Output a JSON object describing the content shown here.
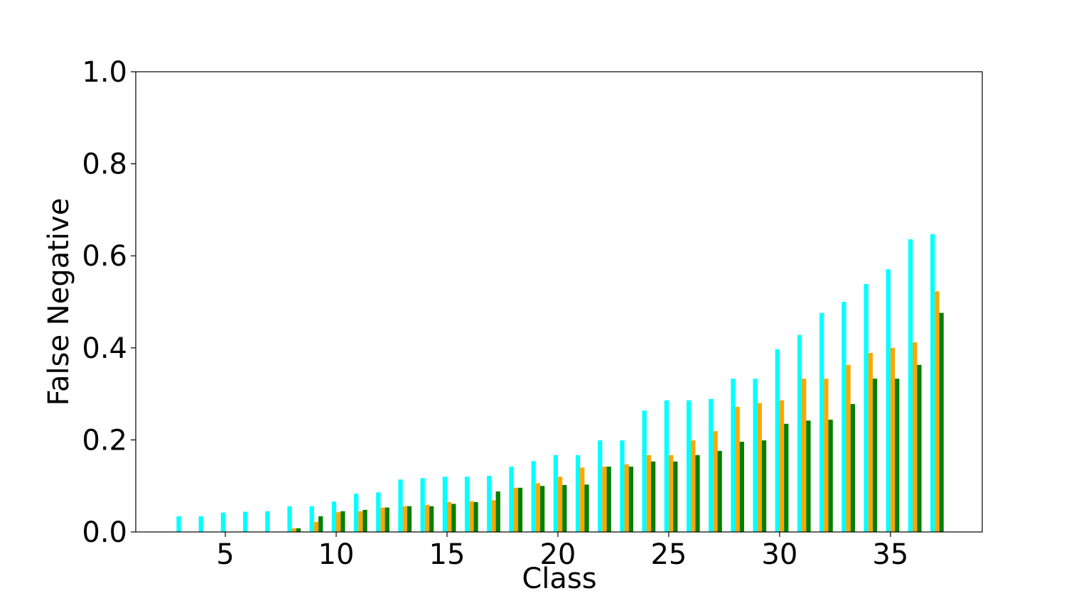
{
  "chart_data": {
    "type": "bar",
    "xlabel": "Class",
    "ylabel": "False Negative",
    "x": [
      3,
      4,
      5,
      6,
      7,
      8,
      9,
      10,
      11,
      12,
      13,
      14,
      15,
      16,
      17,
      18,
      19,
      20,
      21,
      22,
      23,
      24,
      25,
      26,
      27,
      28,
      29,
      30,
      31,
      32,
      33,
      34,
      35,
      36,
      37
    ],
    "series": [
      {
        "color": "#00ffff",
        "values": [
          0.034,
          0.034,
          0.042,
          0.044,
          0.045,
          0.056,
          0.056,
          0.066,
          0.083,
          0.086,
          0.114,
          0.117,
          0.12,
          0.12,
          0.122,
          0.142,
          0.154,
          0.167,
          0.167,
          0.199,
          0.199,
          0.264,
          0.286,
          0.286,
          0.289,
          0.333,
          0.333,
          0.397,
          0.428,
          0.476,
          0.5,
          0.539,
          0.571,
          0.636,
          0.647
        ]
      },
      {
        "color": "#ffa500",
        "values": [
          0,
          0,
          0,
          0,
          0,
          0.008,
          0.022,
          0.043,
          0.045,
          0.053,
          0.056,
          0.059,
          0.065,
          0.067,
          0.069,
          0.096,
          0.106,
          0.12,
          0.14,
          0.142,
          0.147,
          0.167,
          0.167,
          0.199,
          0.219,
          0.272,
          0.28,
          0.286,
          0.333,
          0.333,
          0.363,
          0.389,
          0.4,
          0.412,
          0.523
        ]
      },
      {
        "color": "#008000",
        "values": [
          0,
          0,
          0,
          0,
          0,
          0.008,
          0.034,
          0.045,
          0.048,
          0.053,
          0.056,
          0.056,
          0.061,
          0.065,
          0.088,
          0.096,
          0.1,
          0.102,
          0.103,
          0.142,
          0.142,
          0.153,
          0.153,
          0.167,
          0.176,
          0.196,
          0.199,
          0.235,
          0.242,
          0.244,
          0.278,
          0.333,
          0.333,
          0.363,
          0.476
        ]
      }
    ],
    "xlim": [
      0.96,
      39.14
    ],
    "xticks": [
      5,
      10,
      15,
      20,
      25,
      30,
      35
    ],
    "ylim": [
      0,
      1
    ],
    "yticks": [
      {
        "value": 0,
        "label": "0.0"
      },
      0.2,
      0.4,
      0.6,
      0.8,
      {
        "value": 1,
        "label": "1.0"
      }
    ]
  }
}
